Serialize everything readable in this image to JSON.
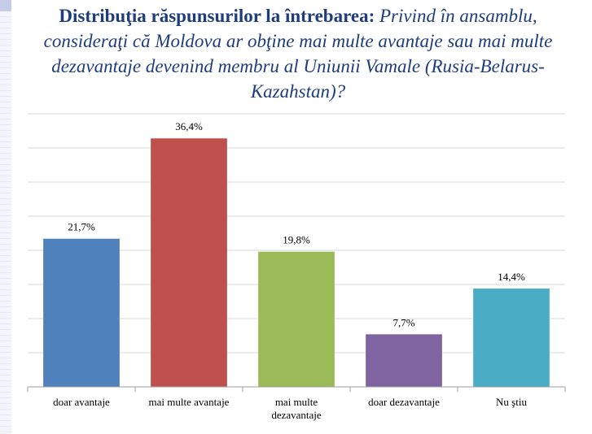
{
  "title": {
    "bold": "Distribuţia răspunsurilor la întrebarea:",
    "italic": "Privind în ansamblu, consideraţi că Moldova ar obţine mai multe avantaje sau mai multe dezavantaje devenind membru al Uniunii Vamale (Rusia-Belarus-Kazahstan)?"
  },
  "chart_data": {
    "type": "bar",
    "categories": [
      [
        "doar avantaje"
      ],
      [
        "mai multe avantaje"
      ],
      [
        "mai multe",
        "dezavantaje"
      ],
      [
        "doar dezavantaje"
      ],
      [
        "Nu ştiu"
      ]
    ],
    "values": [
      21.7,
      36.4,
      19.8,
      7.7,
      14.4
    ],
    "value_labels": [
      "21,7%",
      "36,4%",
      "19,8%",
      "7,7%",
      "14,4%"
    ],
    "colors": [
      "#4f81bd",
      "#c0504d",
      "#9bbb59",
      "#8064a2",
      "#4bacc6"
    ],
    "ylim": [
      0,
      40
    ],
    "grid": true,
    "legend": "none"
  }
}
